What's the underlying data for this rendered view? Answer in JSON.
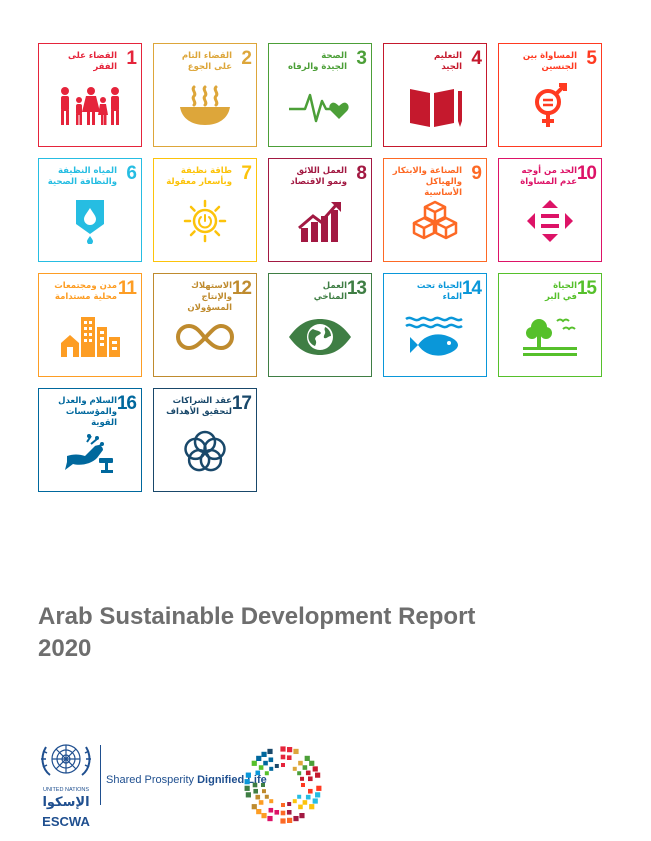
{
  "goals": [
    {
      "num": "1",
      "label": "القضاء على\nالفقر",
      "color": "#e5243b",
      "icon": "people-icon"
    },
    {
      "num": "2",
      "label": "القضاء التام\nعلى الجوع",
      "color": "#dda63a",
      "icon": "bowl-icon"
    },
    {
      "num": "3",
      "label": "الصحة\nالجيدة والرفاه",
      "color": "#4c9f38",
      "icon": "heartbeat-icon"
    },
    {
      "num": "4",
      "label": "التعليم\nالجيد",
      "color": "#c5192d",
      "icon": "book-icon"
    },
    {
      "num": "5",
      "label": "المساواة بين\nالجنسين",
      "color": "#ff3a21",
      "icon": "gender-icon"
    },
    {
      "num": "6",
      "label": "المياه النظيفة\nوالنظافة الصحية",
      "color": "#26bde2",
      "icon": "water-icon"
    },
    {
      "num": "7",
      "label": "طاقة نظيفة\nوبأسعار معقولة",
      "color": "#fcc30b",
      "icon": "sun-power-icon"
    },
    {
      "num": "8",
      "label": "العمل اللائق\nونمو الاقتصاد",
      "color": "#a21942",
      "icon": "growth-chart-icon"
    },
    {
      "num": "9",
      "label": "الصناعة والابتكار\nوالهياكل\nالأساسية",
      "color": "#fd6925",
      "icon": "cubes-icon"
    },
    {
      "num": "10",
      "label": "الحد من أوجه\nعدم المساواة",
      "color": "#dd1367",
      "icon": "equality-icon"
    },
    {
      "num": "11",
      "label": "مدن ومجتمعات\nمحلية مستدامة",
      "color": "#fd9d24",
      "icon": "buildings-icon"
    },
    {
      "num": "12",
      "label": "الاستهلاك\nوالإنتاج\nالمسؤولان",
      "color": "#bf8b2e",
      "icon": "infinity-icon"
    },
    {
      "num": "13",
      "label": "العمل\nالمناخي",
      "color": "#3f7e44",
      "icon": "earth-eye-icon"
    },
    {
      "num": "14",
      "label": "الحياة تحت\nالماء",
      "color": "#0a97d9",
      "icon": "fish-icon"
    },
    {
      "num": "15",
      "label": "الحياة\nفي البر",
      "color": "#56c02b",
      "icon": "tree-birds-icon"
    },
    {
      "num": "16",
      "label": "السلام والعدل\nوالمؤسسات\nالقوية",
      "color": "#00689d",
      "icon": "dove-gavel-icon"
    },
    {
      "num": "17",
      "label": "عقد الشراكات\nلتحقيق الأهداف",
      "color": "#19486a",
      "icon": "rings-icon"
    }
  ],
  "report": {
    "title_line1": "Arab Sustainable Development Report",
    "title_line2": "2020"
  },
  "branding": {
    "un_text": "UNITED NATIONS",
    "arabic_name": "الإسكوا",
    "org": "ESCWA",
    "tagline_regular": "Shared Prosperity ",
    "tagline_bold": "Dignified Life",
    "brand_color": "#1f4f8f"
  }
}
